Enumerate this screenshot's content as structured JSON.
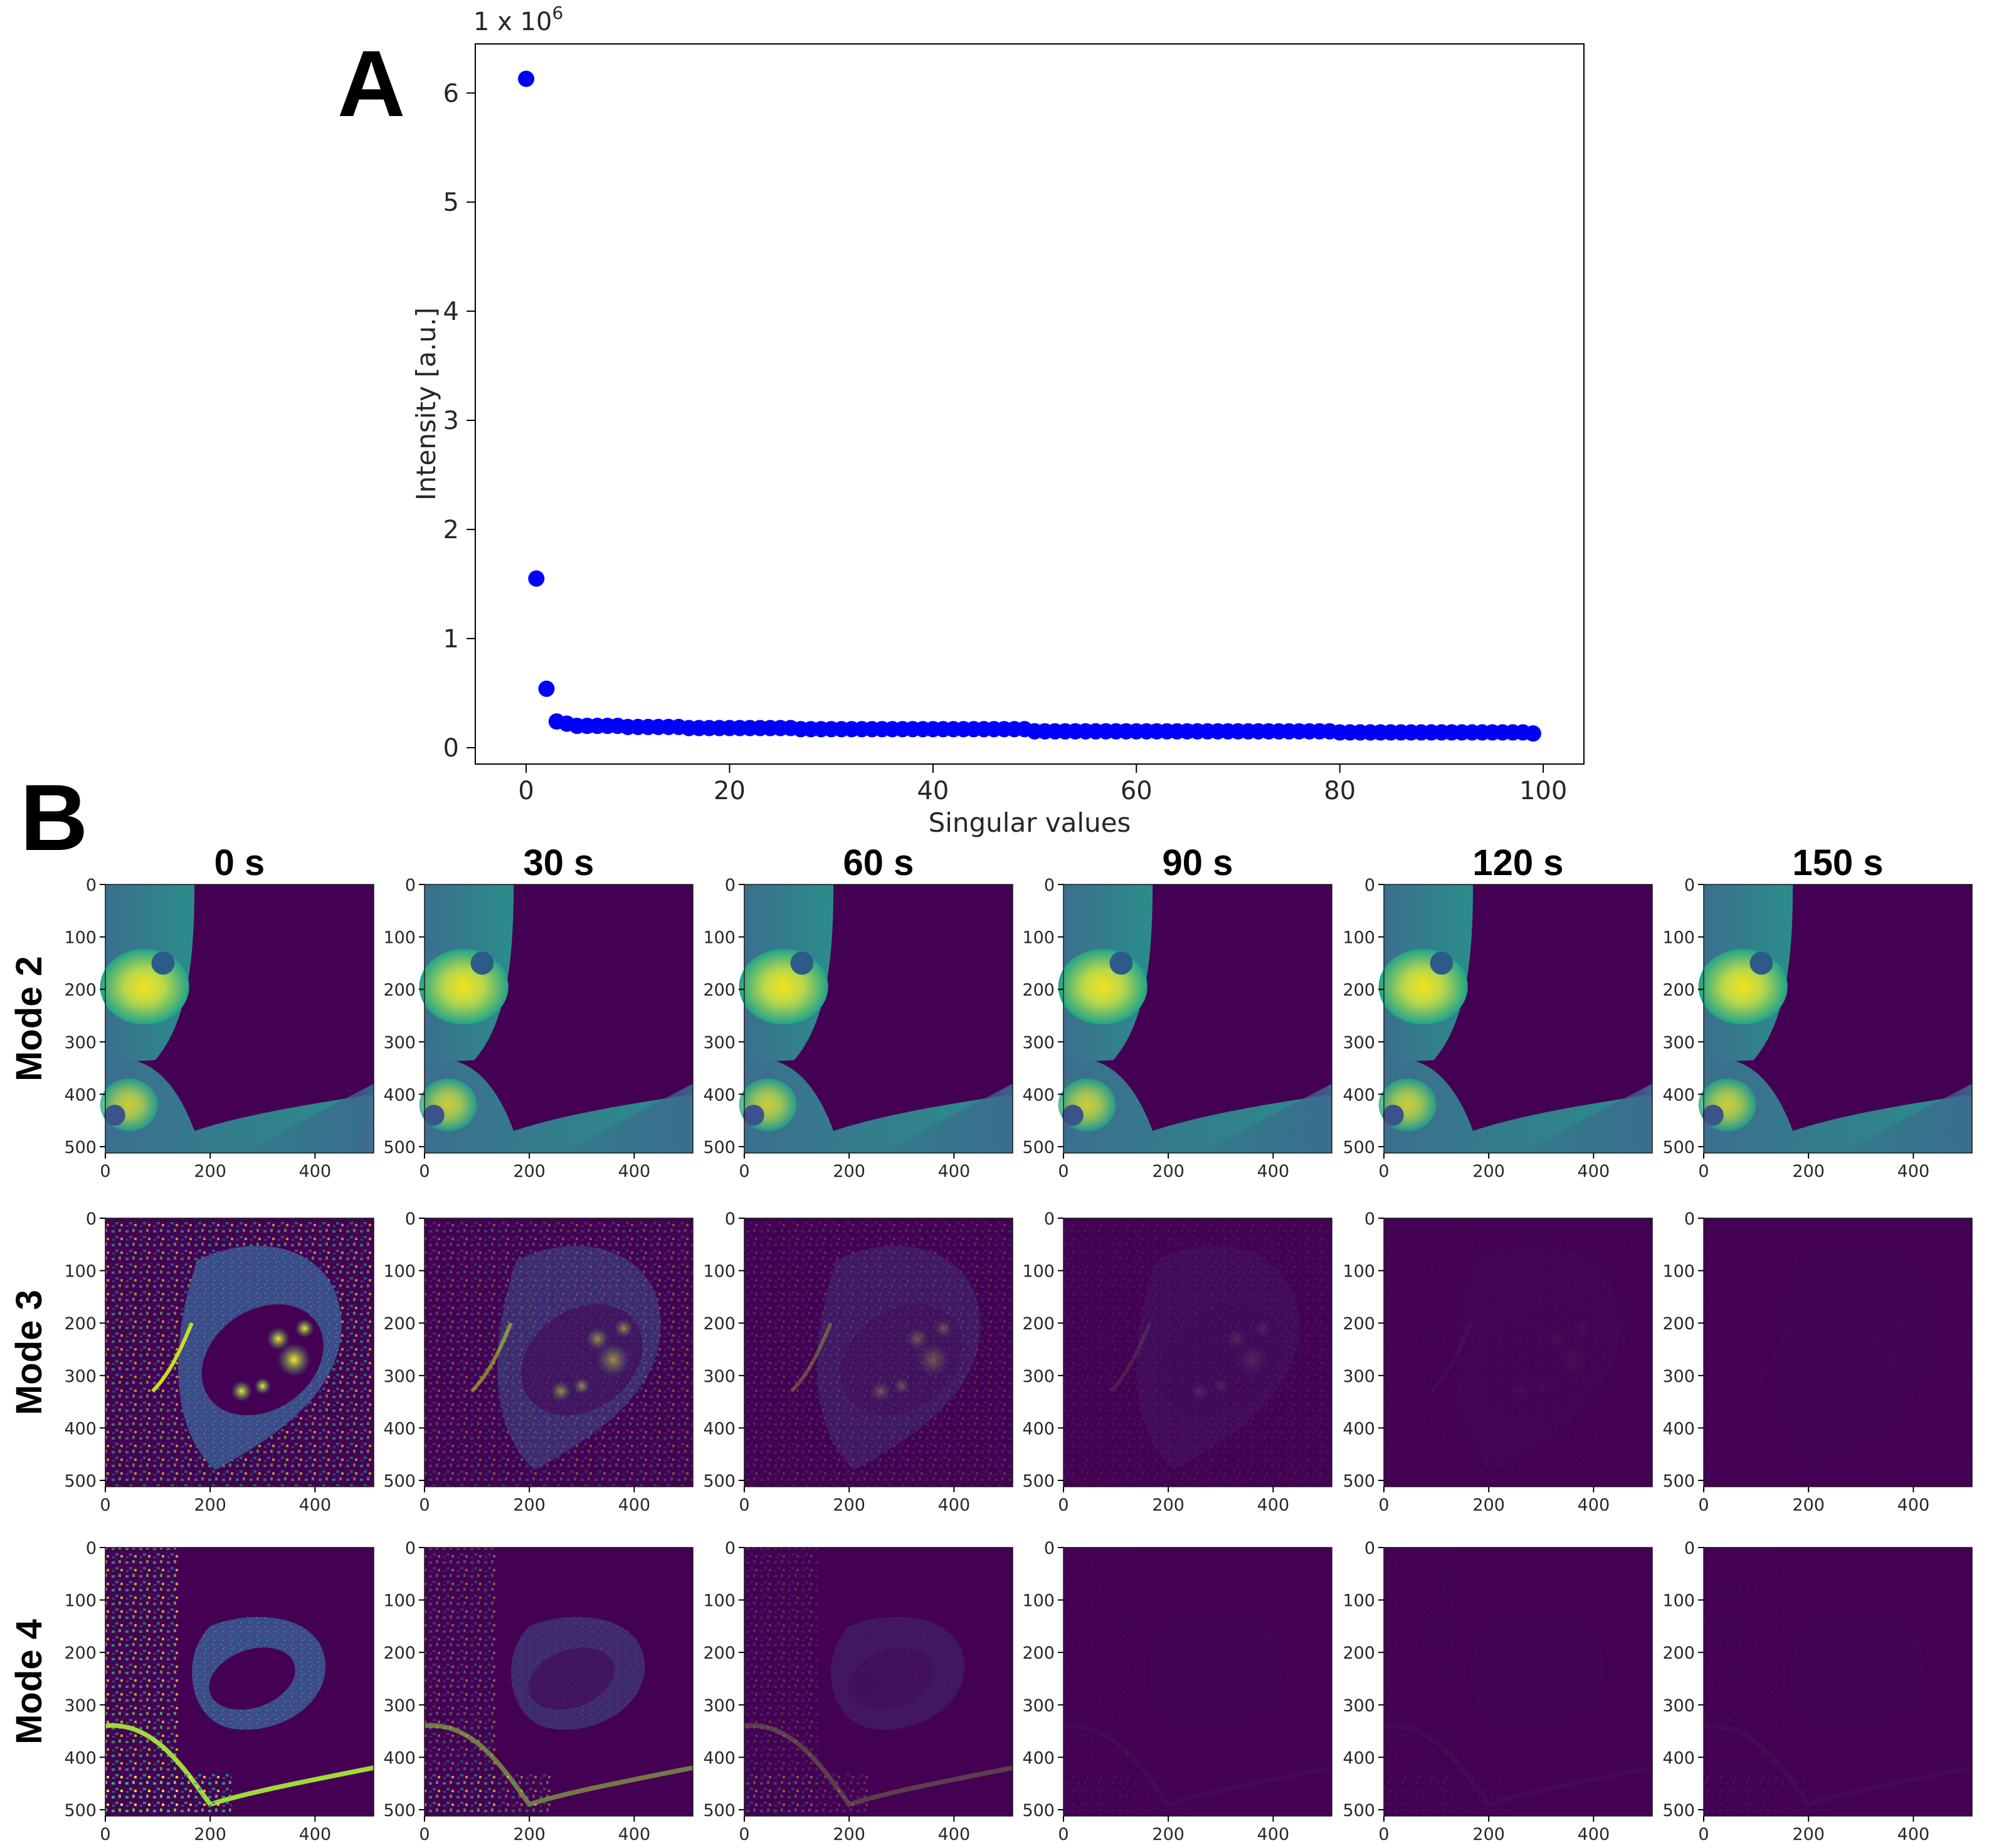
{
  "panels": {
    "a_label": "A",
    "b_label": "B"
  },
  "chart_data": [
    {
      "type": "scatter",
      "title": "",
      "xlabel": "Singular values",
      "ylabel": "Intensity [a.u.]",
      "scale_label": "1 x 10",
      "scale_exponent": "6",
      "xlim": [
        -5,
        104
      ],
      "ylim": [
        -0.15,
        6.45
      ],
      "xticks": [
        0,
        20,
        40,
        60,
        80,
        100
      ],
      "yticks": [
        0,
        1,
        2,
        3,
        4,
        5,
        6
      ],
      "grid": false,
      "marker_color": "#0000ff",
      "series": [
        {
          "x": [
            0,
            1,
            2,
            3,
            4,
            5,
            6,
            7,
            8,
            9,
            10,
            11,
            12,
            13,
            14,
            15,
            16,
            17,
            18,
            19,
            20,
            21,
            22,
            23,
            24,
            25,
            26,
            27,
            28,
            29,
            30,
            31,
            32,
            33,
            34,
            35,
            36,
            37,
            38,
            39,
            40,
            41,
            42,
            43,
            44,
            45,
            46,
            47,
            48,
            49,
            50,
            51,
            52,
            53,
            54,
            55,
            56,
            57,
            58,
            59,
            60,
            61,
            62,
            63,
            64,
            65,
            66,
            67,
            68,
            69,
            70,
            71,
            72,
            73,
            74,
            75,
            76,
            77,
            78,
            79,
            80,
            81,
            82,
            83,
            84,
            85,
            86,
            87,
            88,
            89,
            90,
            91,
            92,
            93,
            94,
            95,
            96,
            97,
            98,
            99
          ],
          "y": [
            6.13,
            1.55,
            0.54,
            0.24,
            0.22,
            0.2,
            0.2,
            0.2,
            0.2,
            0.2,
            0.19,
            0.19,
            0.19,
            0.19,
            0.19,
            0.19,
            0.18,
            0.18,
            0.18,
            0.18,
            0.18,
            0.18,
            0.18,
            0.18,
            0.18,
            0.18,
            0.18,
            0.17,
            0.17,
            0.17,
            0.17,
            0.17,
            0.17,
            0.17,
            0.17,
            0.17,
            0.17,
            0.17,
            0.17,
            0.17,
            0.17,
            0.17,
            0.17,
            0.17,
            0.17,
            0.17,
            0.17,
            0.17,
            0.17,
            0.17,
            0.15,
            0.15,
            0.15,
            0.15,
            0.15,
            0.15,
            0.15,
            0.15,
            0.15,
            0.15,
            0.15,
            0.15,
            0.15,
            0.15,
            0.15,
            0.15,
            0.15,
            0.15,
            0.15,
            0.15,
            0.15,
            0.15,
            0.15,
            0.15,
            0.15,
            0.15,
            0.15,
            0.15,
            0.15,
            0.15,
            0.14,
            0.14,
            0.14,
            0.14,
            0.14,
            0.14,
            0.14,
            0.14,
            0.14,
            0.14,
            0.14,
            0.14,
            0.14,
            0.14,
            0.14,
            0.14,
            0.14,
            0.14,
            0.14,
            0.13
          ]
        }
      ]
    },
    {
      "type": "heatmap",
      "title": "",
      "colormap": "viridis",
      "columns": [
        "0 s",
        "30 s",
        "60 s",
        "90 s",
        "120 s",
        "150 s"
      ],
      "rows": [
        "Mode 2",
        "Mode 3",
        "Mode 4"
      ],
      "xticks": [
        0,
        200,
        400
      ],
      "yticks": [
        0,
        100,
        200,
        300,
        400,
        500
      ],
      "relative_intensity": [
        [
          1.0,
          1.0,
          1.0,
          1.0,
          1.0,
          1.0
        ],
        [
          1.0,
          0.55,
          0.3,
          0.12,
          0.04,
          0.02
        ],
        [
          1.0,
          0.55,
          0.28,
          0.04,
          0.04,
          0.04
        ]
      ]
    }
  ]
}
